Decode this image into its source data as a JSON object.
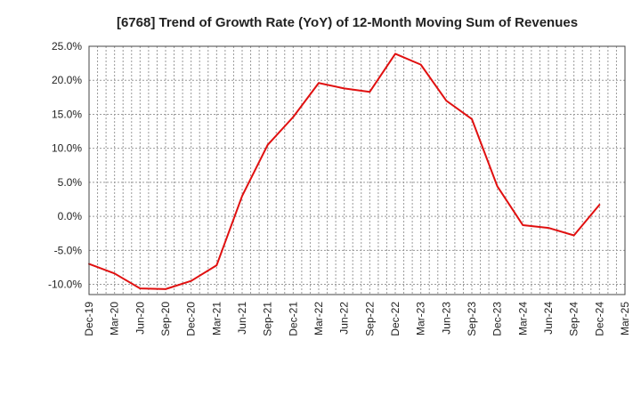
{
  "chart_data": {
    "type": "line",
    "title": "[6768]  Trend of Growth Rate (YoY) of 12-Month Moving Sum of Revenues",
    "xlabel": "",
    "ylabel": "",
    "x_tick_labels": [
      "Dec-19",
      "Mar-20",
      "Jun-20",
      "Sep-20",
      "Dec-20",
      "Mar-21",
      "Jun-21",
      "Sep-21",
      "Dec-21",
      "Mar-22",
      "Jun-22",
      "Sep-22",
      "Dec-22",
      "Mar-23",
      "Jun-23",
      "Sep-23",
      "Dec-23",
      "Mar-24",
      "Jun-24",
      "Sep-24",
      "Dec-24",
      "Mar-25"
    ],
    "y_ticks": [
      25,
      20,
      15,
      10,
      5,
      0,
      -5,
      -10
    ],
    "y_tick_labels": [
      "25.0%",
      "20.0%",
      "15.0%",
      "10.0%",
      "5.0%",
      "0.0%",
      "-5.0%",
      "-10.0%"
    ],
    "ylim": [
      -11.5,
      25
    ],
    "grid": true,
    "line_color": "#e01010",
    "series": [
      {
        "x": [
          "Dec-19",
          "Mar-20",
          "Jun-20",
          "Sep-20",
          "Dec-20",
          "Mar-21",
          "Jun-21",
          "Sep-21",
          "Dec-21",
          "Mar-22",
          "Jun-22",
          "Sep-22",
          "Dec-22",
          "Mar-23",
          "Jun-23",
          "Sep-23",
          "Dec-23",
          "Mar-24",
          "Jun-24",
          "Sep-24",
          "Dec-24"
        ],
        "values": [
          -7.0,
          -8.4,
          -10.6,
          -10.7,
          -9.5,
          -7.2,
          3.0,
          10.5,
          14.6,
          19.6,
          18.8,
          18.3,
          23.9,
          22.3,
          17.0,
          14.3,
          4.4,
          -1.3,
          -1.7,
          -2.8,
          1.7
        ]
      }
    ]
  }
}
